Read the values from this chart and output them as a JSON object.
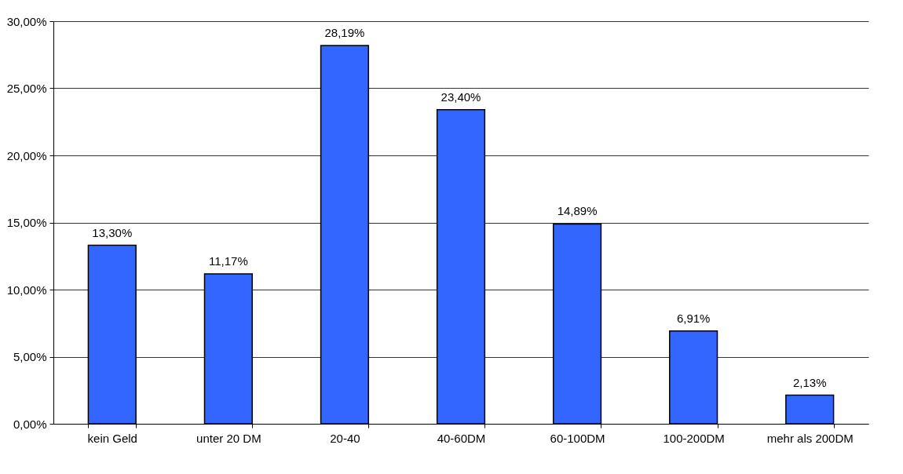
{
  "chart_data": {
    "type": "bar",
    "categories": [
      "kein Geld",
      "unter 20 DM",
      "20-40",
      "40-60DM",
      "60-100DM",
      "100-200DM",
      "mehr als 200DM"
    ],
    "values": [
      13.3,
      11.17,
      28.19,
      23.4,
      14.89,
      6.91,
      2.13
    ],
    "value_labels": [
      "13,30%",
      "11,17%",
      "28,19%",
      "23,40%",
      "14,89%",
      "6,91%",
      "2,13%"
    ],
    "color": "#3366ff",
    "ylim": [
      0,
      30
    ],
    "yticks": [
      {
        "value": 0,
        "label": "0,00%"
      },
      {
        "value": 5,
        "label": "5,00%"
      },
      {
        "value": 10,
        "label": "10,00%"
      },
      {
        "value": 15,
        "label": "15,00%"
      },
      {
        "value": 20,
        "label": "20,00%"
      },
      {
        "value": 25,
        "label": "25,00%"
      },
      {
        "value": 30,
        "label": "30,00%"
      }
    ],
    "grid": "y"
  }
}
